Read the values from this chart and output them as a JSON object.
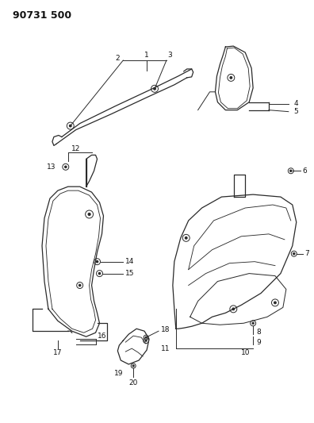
{
  "title": "90731 500",
  "bg_color": "#ffffff",
  "line_color": "#2a2a2a",
  "text_color": "#111111",
  "fig_width": 3.96,
  "fig_height": 5.33,
  "dpi": 100
}
